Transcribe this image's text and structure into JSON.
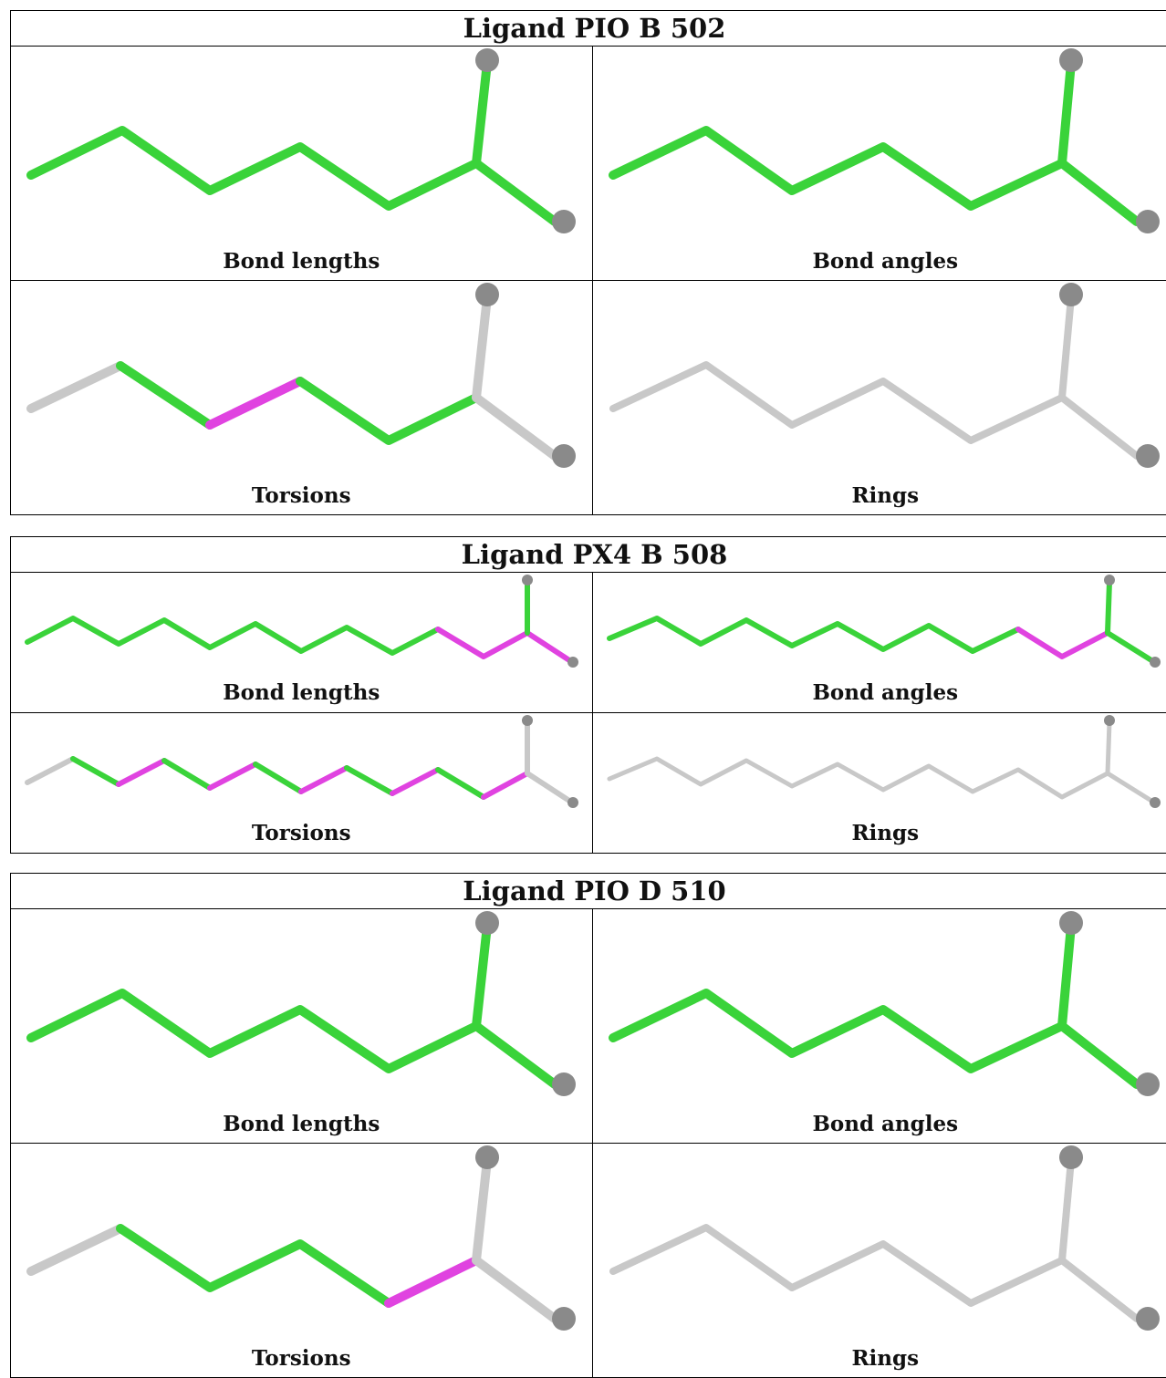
{
  "colors": {
    "ok": "#3ad33a",
    "outlier": "#e043e0",
    "neutral": "#c8c8c8",
    "atom": "#8a8a8a"
  },
  "captions": {
    "bond_lengths": "Bond lengths",
    "bond_angles": "Bond angles",
    "torsions": "Torsions",
    "rings": "Rings"
  },
  "ligands": [
    {
      "title": "Ligand PIO B 502"
    },
    {
      "title": "Ligand PX4 B 508"
    },
    {
      "title": "Ligand PIO D 510"
    }
  ]
}
